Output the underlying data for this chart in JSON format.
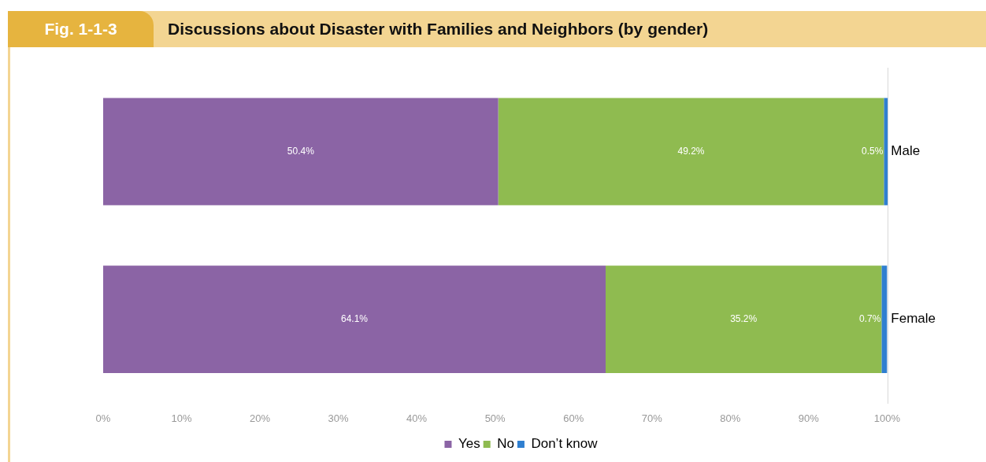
{
  "chart_data": {
    "type": "bar",
    "orientation": "horizontal",
    "stacked": true,
    "title": "Discussions about Disaster with Families and Neighbors (by gender)",
    "annotations": [
      "Fig. 1-1-3"
    ],
    "categories": [
      "Male",
      "Female"
    ],
    "series": [
      {
        "name": "Yes",
        "color": "#8b64a5",
        "values": [
          50.4,
          64.1
        ],
        "value_labels": [
          "50.4%",
          "64.1%"
        ]
      },
      {
        "name": "No",
        "color": "#8fbb50",
        "values": [
          49.2,
          35.2
        ],
        "value_labels": [
          "49.2%",
          "35.2%"
        ]
      },
      {
        "name": "Don’t know",
        "color": "#2f7fd0",
        "values": [
          0.5,
          0.7
        ],
        "value_labels": [
          "0.5%",
          "0.7%"
        ]
      }
    ],
    "xlim": [
      0,
      100.1
    ],
    "xticks": [
      {
        "value": 0,
        "label": "0%"
      },
      {
        "value": 10,
        "label": "10%"
      },
      {
        "value": 20,
        "label": "20%"
      },
      {
        "value": 30,
        "label": "30%"
      },
      {
        "value": 40,
        "label": "40%"
      },
      {
        "value": 50,
        "label": "50%"
      },
      {
        "value": 60,
        "label": "60%"
      },
      {
        "value": 70,
        "label": "70%"
      },
      {
        "value": 80,
        "label": "80%"
      },
      {
        "value": 90,
        "label": "90%"
      },
      {
        "value": 100,
        "label": "100%"
      }
    ],
    "legend": "bottom"
  }
}
